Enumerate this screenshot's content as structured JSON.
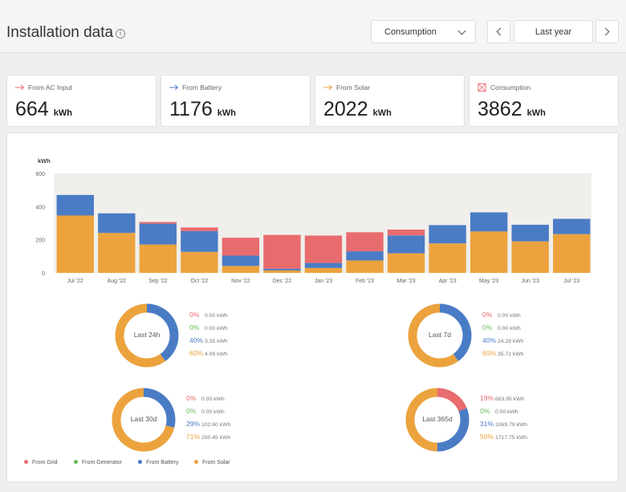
{
  "header": {
    "title": "Installation data",
    "info_icon": "info-icon",
    "view_selector": {
      "value": "Consumption"
    },
    "range_label": "Last year"
  },
  "colors": {
    "grid": "#e86b6e",
    "generator": "#6abb5a",
    "battery": "#4a7cc6",
    "solar": "#eca33d",
    "plot_background": "#f0efec"
  },
  "summary_cards": [
    {
      "label": "From AC Input",
      "value": "664",
      "unit": "kWh",
      "icon": "ac-input-arrow-icon"
    },
    {
      "label": "From Battery",
      "value": "1176",
      "unit": "kWh",
      "icon": "battery-arrow-icon"
    },
    {
      "label": "From Solar",
      "value": "2022",
      "unit": "kWh",
      "icon": "solar-arrow-icon"
    },
    {
      "label": "Consumption",
      "value": "3862",
      "unit": "kWh",
      "icon": "consumption-icon"
    }
  ],
  "chart_data": {
    "type": "bar",
    "stacked": true,
    "ylabel": "kWh",
    "ylim": [
      0,
      600
    ],
    "yticks": [
      0,
      200,
      400,
      600
    ],
    "grid": false,
    "categories": [
      "Jul '22",
      "Aug '22",
      "Sep '22",
      "Oct '22",
      "Nov '22",
      "Dec '22",
      "Jan '23",
      "Feb '23",
      "Mar '23",
      "Apr '23",
      "May '23",
      "Jun '23",
      "Jul '23"
    ],
    "series": [
      {
        "name": "From Solar",
        "color": "#eca33d",
        "values": [
          346,
          241,
          171,
          127,
          42,
          15,
          30,
          75,
          118,
          178,
          250,
          190,
          234
        ]
      },
      {
        "name": "From Battery",
        "color": "#4a7cc6",
        "values": [
          124,
          118,
          126,
          125,
          62,
          10,
          30,
          55,
          108,
          110,
          115,
          100,
          92
        ]
      },
      {
        "name": "From Grid",
        "color": "#e86b6e",
        "values": [
          0,
          0,
          10,
          22,
          108,
          204,
          165,
          115,
          35,
          0,
          0,
          0,
          0
        ]
      }
    ]
  },
  "donuts": [
    {
      "label": "Last 24h",
      "rows": [
        {
          "pct": "0%",
          "kwh": "0.00 kWh",
          "fraction": 0
        },
        {
          "pct": "0%",
          "kwh": "0.00 kWh",
          "fraction": 0
        },
        {
          "pct": "40%",
          "kwh": "3.35 kWh",
          "fraction": 0.4
        },
        {
          "pct": "60%",
          "kwh": "4.99 kWh",
          "fraction": 0.6
        }
      ]
    },
    {
      "label": "Last 7d",
      "rows": [
        {
          "pct": "0%",
          "kwh": "0.00 kWh",
          "fraction": 0
        },
        {
          "pct": "0%",
          "kwh": "0.00 kWh",
          "fraction": 0
        },
        {
          "pct": "40%",
          "kwh": "24.28 kWh",
          "fraction": 0.4
        },
        {
          "pct": "60%",
          "kwh": "35.71 kWh",
          "fraction": 0.6
        }
      ]
    },
    {
      "label": "Last 30d",
      "rows": [
        {
          "pct": "0%",
          "kwh": "0.00 kWh",
          "fraction": 0
        },
        {
          "pct": "0%",
          "kwh": "0.00 kWh",
          "fraction": 0
        },
        {
          "pct": "29%",
          "kwh": "102.60 kWh",
          "fraction": 0.29
        },
        {
          "pct": "71%",
          "kwh": "250.45 kWh",
          "fraction": 0.71
        }
      ]
    },
    {
      "label": "Last 365d",
      "rows": [
        {
          "pct": "19%",
          "kwh": "663.95 kWh",
          "fraction": 0.19
        },
        {
          "pct": "0%",
          "kwh": "0.00 kWh",
          "fraction": 0
        },
        {
          "pct": "31%",
          "kwh": "1069.79 kWh",
          "fraction": 0.31
        },
        {
          "pct": "50%",
          "kwh": "1717.75 kWh",
          "fraction": 0.5
        }
      ]
    }
  ],
  "legend": [
    "From Grid",
    "From Generator",
    "From Battery",
    "From Solar"
  ]
}
